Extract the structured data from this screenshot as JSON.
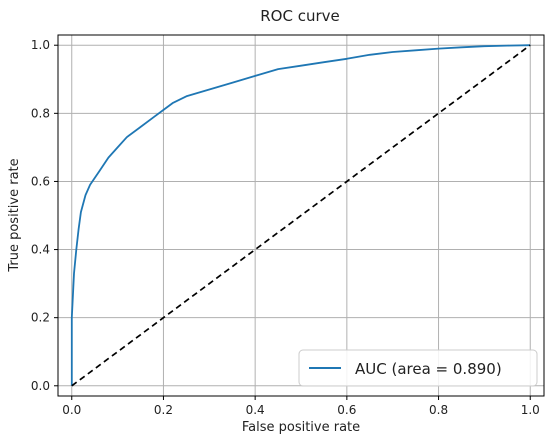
{
  "chart_data": {
    "type": "line",
    "title": "ROC curve",
    "xlabel": "False positive rate",
    "ylabel": "True positive rate",
    "xlim": [
      -0.03,
      1.03
    ],
    "ylim": [
      -0.03,
      1.03
    ],
    "grid": true,
    "x_ticks": [
      "0.0",
      "0.2",
      "0.4",
      "0.6",
      "0.8",
      "1.0"
    ],
    "y_ticks": [
      "0.0",
      "0.2",
      "0.4",
      "0.6",
      "0.8",
      "1.0"
    ],
    "legend_position": "lower-right",
    "series": [
      {
        "name": "AUC (area = 0.890)",
        "color": "#1f77b4",
        "style": "solid",
        "x": [
          0.0,
          0.0,
          0.005,
          0.01,
          0.015,
          0.02,
          0.03,
          0.04,
          0.05,
          0.06,
          0.08,
          0.1,
          0.12,
          0.15,
          0.18,
          0.2,
          0.22,
          0.25,
          0.3,
          0.35,
          0.4,
          0.45,
          0.5,
          0.55,
          0.6,
          0.65,
          0.7,
          0.75,
          0.8,
          0.85,
          0.9,
          0.95,
          1.0
        ],
        "y": [
          0.0,
          0.2,
          0.33,
          0.4,
          0.46,
          0.51,
          0.56,
          0.59,
          0.61,
          0.63,
          0.67,
          0.7,
          0.73,
          0.76,
          0.79,
          0.81,
          0.83,
          0.85,
          0.87,
          0.89,
          0.91,
          0.93,
          0.94,
          0.95,
          0.96,
          0.972,
          0.98,
          0.985,
          0.99,
          0.994,
          0.997,
          0.999,
          1.0
        ]
      },
      {
        "name": "",
        "color": "#000000",
        "style": "dashed",
        "x": [
          0.0,
          1.0
        ],
        "y": [
          0.0,
          1.0
        ]
      }
    ]
  }
}
